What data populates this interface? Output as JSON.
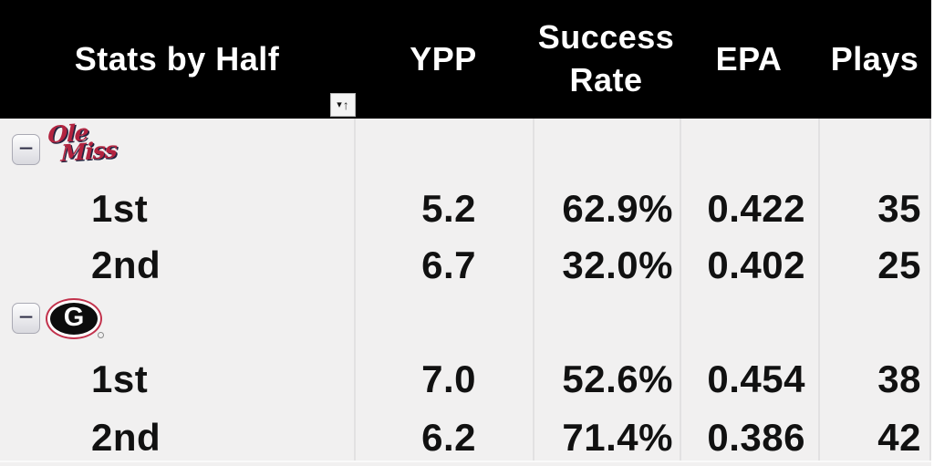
{
  "table": {
    "title_column": "Stats by Half",
    "columns": [
      "YPP",
      "Success Rate",
      "EPA",
      "Plays"
    ],
    "groups": [
      {
        "team": "Ole Miss",
        "logo_lines": [
          "Ole",
          "Miss"
        ],
        "rows": [
          {
            "half": "1st",
            "ypp": "5.2",
            "success_rate": "62.9%",
            "epa": "0.422",
            "plays": "35"
          },
          {
            "half": "2nd",
            "ypp": "6.7",
            "success_rate": "32.0%",
            "epa": "0.402",
            "plays": "25"
          }
        ]
      },
      {
        "team": "Georgia",
        "logo_letter": "G",
        "rows": [
          {
            "half": "1st",
            "ypp": "7.0",
            "success_rate": "52.6%",
            "epa": "0.454",
            "plays": "38"
          },
          {
            "half": "2nd",
            "ypp": "6.2",
            "success_rate": "71.4%",
            "epa": "0.386",
            "plays": "42"
          }
        ]
      }
    ]
  },
  "icons": {
    "collapse": "−",
    "filter_dropdown": "▾",
    "sort_ascending": "↑"
  },
  "colors": {
    "header_bg": "#000000",
    "header_text": "#ffffff",
    "body_bg": "#f1f0f0",
    "gridline": "#e2e1e2",
    "text": "#111111",
    "ole_miss_red": "#b2233f",
    "ole_miss_navy": "#23233f",
    "georgia_red": "#c2324c",
    "georgia_black": "#0d0d0d"
  }
}
